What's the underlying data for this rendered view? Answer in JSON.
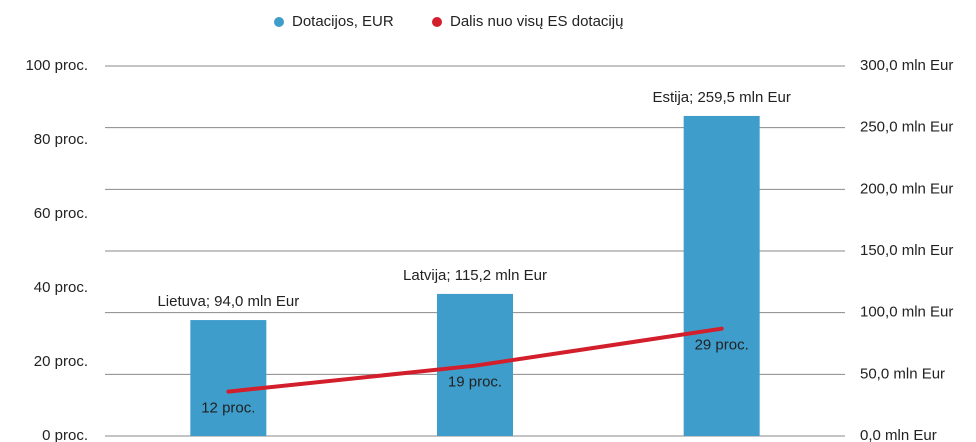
{
  "chart_data": {
    "type": "bar",
    "series": [
      {
        "name": "Dotacijos, EUR",
        "type": "bar",
        "axis": "y2",
        "color": "#3e9dcb",
        "values": [
          94.0,
          115.2,
          259.5
        ],
        "value_labels": [
          "Lietuva; 94,0 mln Eur",
          "Latvija; 115,2 mln Eur",
          "Estija; 259,5 mln Eur"
        ]
      },
      {
        "name": "Dalis nuo visų ES dotacijų",
        "type": "line",
        "axis": "y",
        "color": "#d21f2b",
        "values": [
          12,
          19,
          29
        ],
        "value_labels": [
          "12 proc.",
          "19 proc.",
          "29 proc."
        ]
      }
    ],
    "ylim": [
      0,
      100
    ],
    "yticks": [
      {
        "value": 0,
        "label": "0 proc."
      },
      {
        "value": 20,
        "label": "20 proc."
      },
      {
        "value": 40,
        "label": "40 proc."
      },
      {
        "value": 60,
        "label": "60 proc."
      },
      {
        "value": 80,
        "label": "80 proc."
      },
      {
        "value": 100,
        "label": "100 proc."
      }
    ],
    "y2lim": [
      0,
      300
    ],
    "y2ticks": [
      {
        "value": 0,
        "label": "0,0 mln Eur"
      },
      {
        "value": 50,
        "label": "50,0 mln Eur"
      },
      {
        "value": 100,
        "label": "100,0 mln Eur"
      },
      {
        "value": 150,
        "label": "150,0 mln Eur"
      },
      {
        "value": 200,
        "label": "200,0 mln Eur"
      },
      {
        "value": 250,
        "label": "250,0 mln Eur"
      },
      {
        "value": 300,
        "label": "300,0 mln Eur"
      }
    ],
    "grid": true,
    "legend": "top"
  }
}
